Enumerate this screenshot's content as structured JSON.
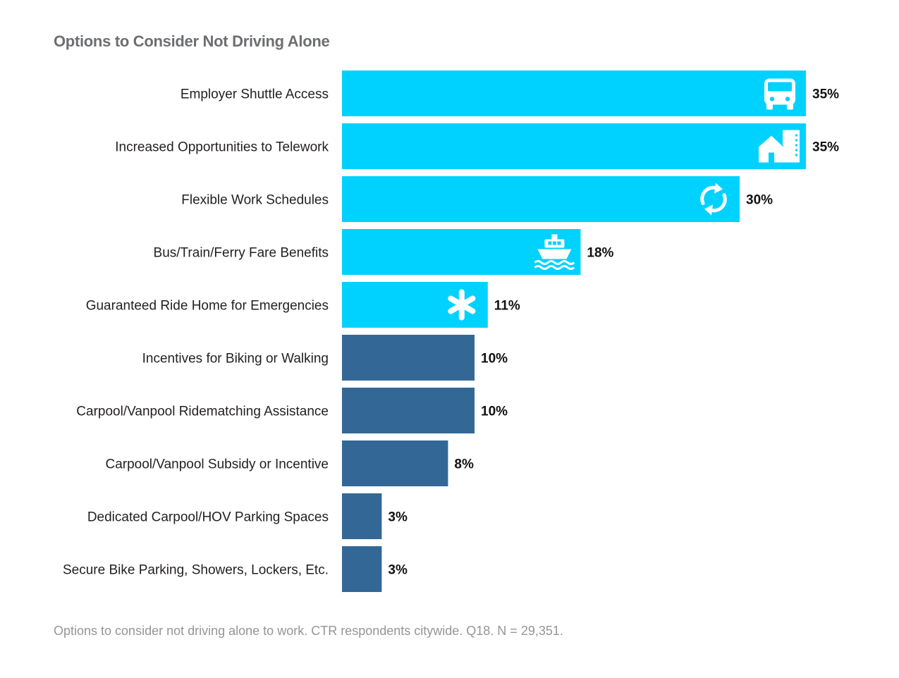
{
  "chart_data": {
    "type": "bar",
    "orientation": "horizontal",
    "title": "Options to Consider Not Driving Alone",
    "footnote": "Options to consider not driving alone to work. CTR respondents citywide. Q18. N = 29,351.",
    "categories": [
      "Employer Shuttle Access",
      "Increased Opportunities to Telework",
      "Flexible Work Schedules",
      "Bus/Train/Ferry Fare Benefits",
      "Guaranteed Ride Home for Emergencies",
      "Incentives for Biking or Walking",
      "Carpool/Vanpool Ridematching Assistance",
      "Carpool/Vanpool Subsidy or Incentive",
      "Dedicated Carpool/HOV Parking Spaces",
      "Secure Bike Parking, Showers, Lockers, Etc."
    ],
    "values": [
      35,
      35,
      30,
      18,
      11,
      10,
      10,
      8,
      3,
      3
    ],
    "value_labels": [
      "35%",
      "35%",
      "30%",
      "18%",
      "11%",
      "10%",
      "10%",
      "8%",
      "3%",
      "3%"
    ],
    "icons": [
      "shuttle-icon",
      "telework-home-icon",
      "flexible-schedule-icon",
      "ferry-icon",
      "emergency-icon",
      null,
      null,
      null,
      null,
      null
    ],
    "colors": {
      "highlight": "#00d2ff",
      "standard": "#336896"
    },
    "highlighted_count": 5,
    "xlim": [
      0,
      35
    ],
    "grid": false,
    "legend": "none"
  }
}
